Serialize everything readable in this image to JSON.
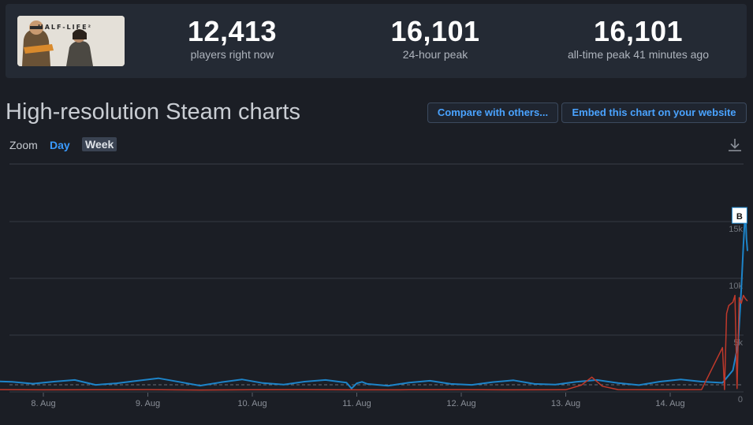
{
  "game": {
    "logo_text": "HALF-LIFE²"
  },
  "stats": [
    {
      "value": "12,413",
      "label": "players right now"
    },
    {
      "value": "16,101",
      "label": "24-hour peak"
    },
    {
      "value": "16,101",
      "label": "all-time peak 41 minutes ago"
    }
  ],
  "section": {
    "title": "High-resolution Steam charts",
    "compare_label": "Compare with others...",
    "embed_label": "Embed this chart on your website"
  },
  "zoom": {
    "label": "Zoom",
    "options": [
      "Day",
      "Week"
    ],
    "selected": "Week"
  },
  "icons": {
    "download": "download-icon"
  },
  "colors": {
    "players_line": "#1d84c9",
    "secondary_line": "#c0392b",
    "accent": "#3a9bff",
    "background": "#1b1e25"
  },
  "chart_data": {
    "type": "line",
    "x_tick_labels": [
      "8. Aug",
      "9. Aug",
      "10. Aug",
      "11. Aug",
      "12. Aug",
      "13. Aug",
      "14. Aug"
    ],
    "y_tick_labels": [
      "0",
      "5k",
      "10k",
      "15k"
    ],
    "ylim": [
      0,
      15000
    ],
    "grid": true,
    "flag_marker": "B",
    "series": [
      {
        "color": "#1d84c9",
        "x": [
          7.5,
          7.7,
          7.9,
          8.1,
          8.3,
          8.5,
          8.7,
          8.9,
          9.1,
          9.3,
          9.5,
          9.7,
          9.9,
          10.1,
          10.3,
          10.5,
          10.7,
          10.9,
          10.95,
          11.0,
          11.05,
          11.1,
          11.3,
          11.5,
          11.7,
          11.9,
          12.1,
          12.3,
          12.5,
          12.7,
          12.9,
          13.1,
          13.3,
          13.5,
          13.7,
          13.9,
          14.1,
          14.3,
          14.5,
          14.6,
          14.65,
          14.68,
          14.7,
          14.72,
          14.73,
          14.74
        ],
        "values": [
          950,
          880,
          720,
          900,
          1050,
          620,
          760,
          980,
          1200,
          880,
          550,
          850,
          1100,
          780,
          640,
          900,
          1050,
          820,
          300,
          760,
          880,
          700,
          540,
          820,
          980,
          700,
          620,
          860,
          1020,
          700,
          640,
          880,
          1050,
          780,
          600,
          900,
          1100,
          900,
          800,
          1900,
          4200,
          9000,
          12900,
          16101,
          13500,
          12413
        ]
      },
      {
        "color": "#c0392b",
        "x": [
          7.5,
          8.0,
          8.5,
          9.0,
          9.5,
          10.0,
          10.5,
          11.0,
          11.5,
          12.0,
          12.5,
          13.0,
          13.15,
          13.25,
          13.35,
          13.5,
          13.9,
          14.3,
          14.5,
          14.52,
          14.54,
          14.56,
          14.6,
          14.62,
          14.64,
          14.66,
          14.68,
          14.7,
          14.72,
          14.74
        ],
        "values": [
          200,
          180,
          190,
          200,
          170,
          190,
          200,
          180,
          190,
          200,
          180,
          190,
          600,
          1300,
          500,
          200,
          190,
          200,
          3900,
          200,
          6900,
          7600,
          7900,
          8500,
          300,
          8300,
          7800,
          8500,
          8200,
          8000
        ]
      }
    ]
  }
}
